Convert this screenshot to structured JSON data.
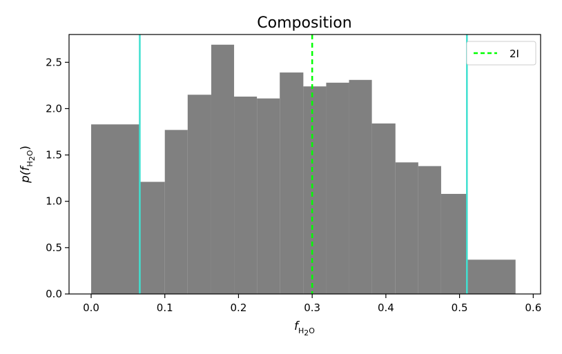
{
  "chart_data": {
    "type": "bar",
    "title": "Composition",
    "xlabel": {
      "main": "f",
      "sub": "H",
      "sub2": "2",
      "sub3": "O"
    },
    "ylabel": {
      "pre": "p(",
      "main": "f",
      "sub": "H",
      "sub2": "2",
      "sub3": "O",
      "post": ")"
    },
    "xlim": [
      -0.03,
      0.61
    ],
    "ylim": [
      0,
      2.8
    ],
    "xticks": [
      0.0,
      0.1,
      0.2,
      0.3,
      0.4,
      0.5,
      0.6
    ],
    "xtick_labels": [
      "0.0",
      "0.1",
      "0.2",
      "0.3",
      "0.4",
      "0.5",
      "0.6"
    ],
    "yticks": [
      0.0,
      0.5,
      1.0,
      1.5,
      2.0,
      2.5
    ],
    "ytick_labels": [
      "0.0",
      "0.5",
      "1.0",
      "1.5",
      "2.0",
      "2.5"
    ],
    "bins": [
      {
        "x0": 0.0,
        "x1": 0.066,
        "value": 1.83
      },
      {
        "x0": 0.066,
        "x1": 0.1,
        "value": 1.21
      },
      {
        "x0": 0.1,
        "x1": 0.131,
        "value": 1.77
      },
      {
        "x0": 0.131,
        "x1": 0.163,
        "value": 2.15
      },
      {
        "x0": 0.163,
        "x1": 0.194,
        "value": 2.69
      },
      {
        "x0": 0.194,
        "x1": 0.225,
        "value": 2.13
      },
      {
        "x0": 0.225,
        "x1": 0.256,
        "value": 2.11
      },
      {
        "x0": 0.256,
        "x1": 0.288,
        "value": 2.39
      },
      {
        "x0": 0.288,
        "x1": 0.319,
        "value": 2.24
      },
      {
        "x0": 0.319,
        "x1": 0.35,
        "value": 2.28
      },
      {
        "x0": 0.35,
        "x1": 0.381,
        "value": 2.31
      },
      {
        "x0": 0.381,
        "x1": 0.413,
        "value": 1.84
      },
      {
        "x0": 0.413,
        "x1": 0.444,
        "value": 1.42
      },
      {
        "x0": 0.444,
        "x1": 0.475,
        "value": 1.38
      },
      {
        "x0": 0.475,
        "x1": 0.51,
        "value": 1.08
      },
      {
        "x0": 0.51,
        "x1": 0.576,
        "value": 0.37
      }
    ],
    "vlines": [
      {
        "x": 0.066,
        "color": "#40e0d0",
        "style": "solid"
      },
      {
        "x": 0.51,
        "color": "#40e0d0",
        "style": "solid"
      },
      {
        "x": 0.3,
        "color": "#00ff00",
        "style": "dashed",
        "label": "2I"
      }
    ],
    "bar_color": "#808080",
    "legend": {
      "position": "top-right",
      "entries": [
        {
          "label": "2I",
          "color": "#00ff00",
          "style": "dashed"
        }
      ]
    },
    "grid": false
  }
}
